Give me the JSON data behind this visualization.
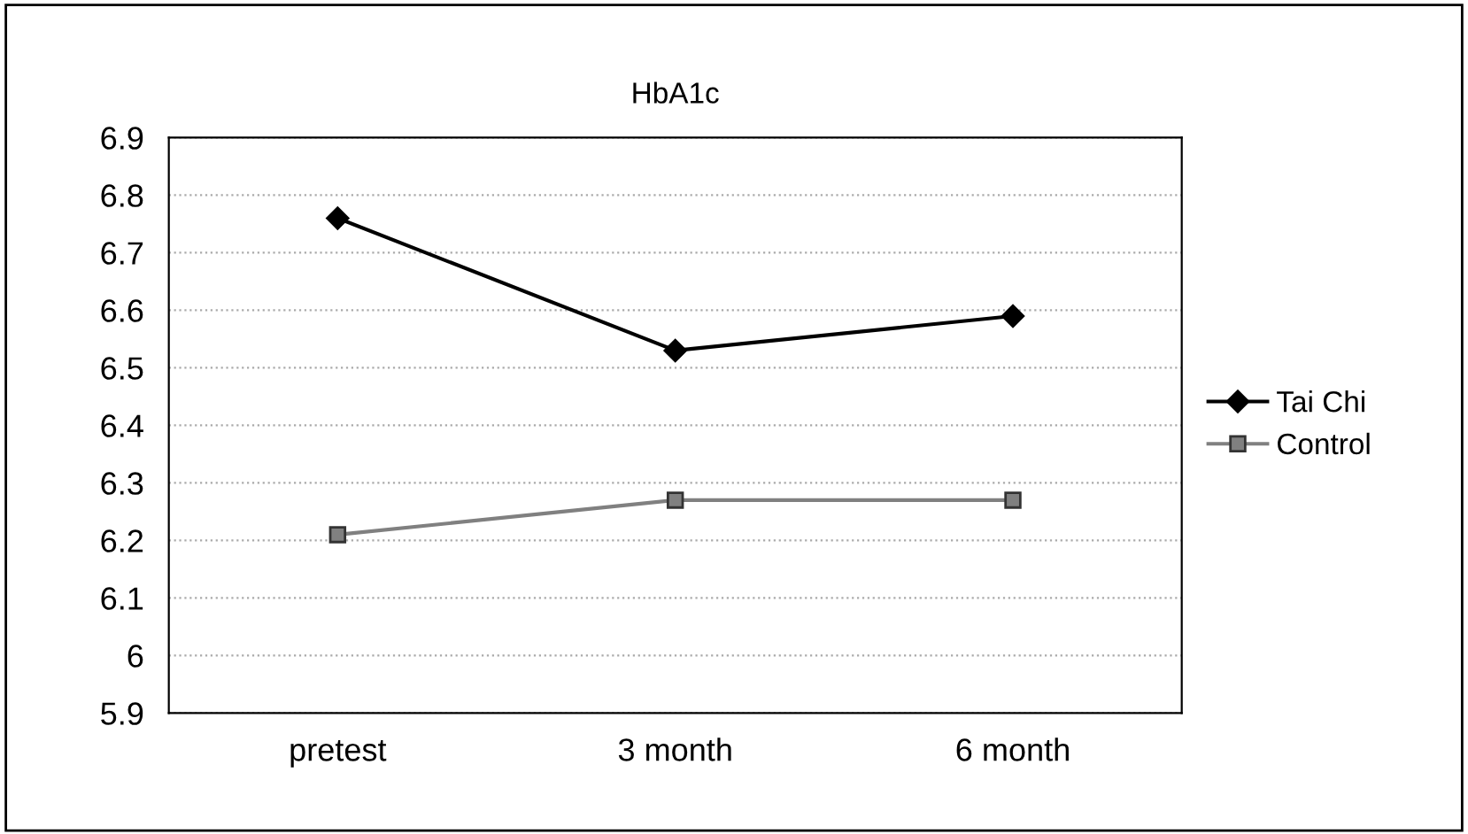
{
  "chart_data": {
    "type": "line",
    "title": "HbA1c",
    "categories": [
      "pretest",
      "3 month",
      "6 month"
    ],
    "series": [
      {
        "name": "Tai Chi",
        "color": "#000000",
        "marker": "diamond",
        "values": [
          6.76,
          6.53,
          6.59
        ]
      },
      {
        "name": "Control",
        "color": "#808080",
        "marker": "square",
        "values": [
          6.21,
          6.27,
          6.27
        ]
      }
    ],
    "ylim": [
      5.9,
      6.9
    ],
    "yticks": [
      5.9,
      6,
      6.1,
      6.2,
      6.3,
      6.4,
      6.5,
      6.6,
      6.7,
      6.8,
      6.9
    ],
    "grid": "y",
    "legend": "right",
    "line_style": "solid"
  }
}
